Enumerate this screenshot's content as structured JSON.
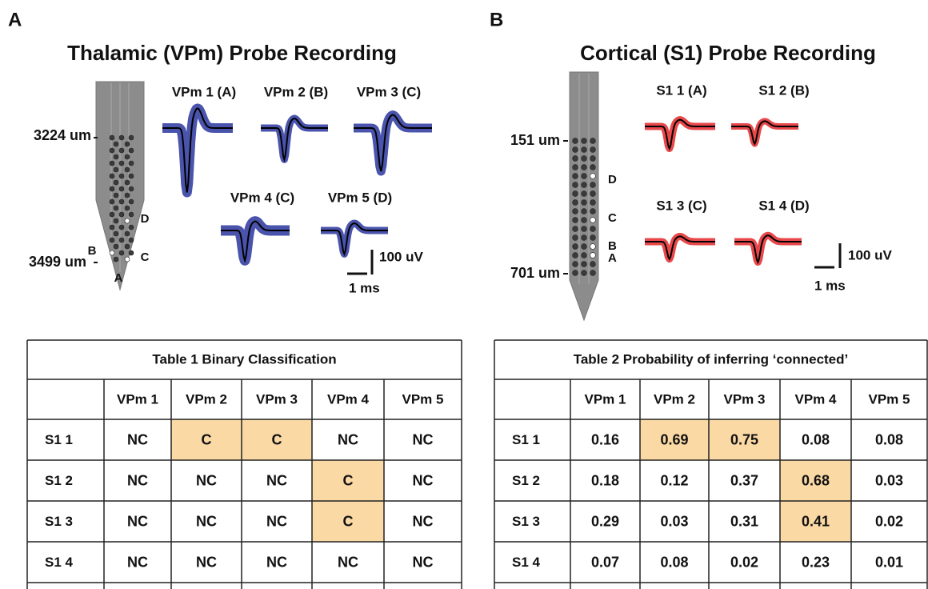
{
  "panels": [
    {
      "letter": "A",
      "title": "Thalamic (VPm) Probe Recording",
      "color": "#2e3192",
      "trace_color": "#4a54ac",
      "depth_top": "3224 um",
      "depth_bottom": "3499 um",
      "sites": [
        "A",
        "B",
        "C",
        "D"
      ],
      "units": [
        "VPm 1 (A)",
        "VPm 2 (B)",
        "VPm 3 (C)",
        "VPm 4 (C)",
        "VPm 5 (D)"
      ],
      "scale_y": "100 uV",
      "scale_x": "1 ms"
    },
    {
      "letter": "B",
      "title": "Cortical (S1) Probe Recording",
      "color": "#e52421",
      "trace_color": "#e8484a",
      "depth_top": "151 um",
      "depth_bottom": "701 um",
      "sites": [
        "A",
        "B",
        "C",
        "D"
      ],
      "units": [
        "S1 1 (A)",
        "S1 2 (B)",
        "S1 3 (C)",
        "S1 4 (D)"
      ],
      "scale_y": "100 uV",
      "scale_x": "1 ms"
    }
  ],
  "tables": [
    {
      "title": "Table 1 Binary Classification",
      "highlight_color": "#fbd9a5",
      "columns": [
        "VPm 1",
        "VPm 2",
        "VPm 3",
        "VPm 4",
        "VPm 5"
      ],
      "rows": [
        {
          "label": "S1 1",
          "cells": [
            "NC",
            "C",
            "C",
            "NC",
            "NC"
          ],
          "highlighted": [
            1,
            2
          ]
        },
        {
          "label": "S1 2",
          "cells": [
            "NC",
            "NC",
            "NC",
            "C",
            "NC"
          ],
          "highlighted": [
            3
          ]
        },
        {
          "label": "S1 3",
          "cells": [
            "NC",
            "NC",
            "NC",
            "C",
            "NC"
          ],
          "highlighted": [
            3
          ]
        },
        {
          "label": "S1 4",
          "cells": [
            "NC",
            "NC",
            "NC",
            "NC",
            "NC"
          ],
          "highlighted": []
        }
      ]
    },
    {
      "title": "Table 2 Probability of inferring ‘connected’",
      "highlight_color": "#fbd9a5",
      "columns": [
        "VPm 1",
        "VPm 2",
        "VPm 3",
        "VPm 4",
        "VPm 5"
      ],
      "rows": [
        {
          "label": "S1 1",
          "cells": [
            "0.16",
            "0.69",
            "0.75",
            "0.08",
            "0.08"
          ],
          "highlighted": [
            1,
            2
          ]
        },
        {
          "label": "S1 2",
          "cells": [
            "0.18",
            "0.12",
            "0.37",
            "0.68",
            "0.03"
          ],
          "highlighted": [
            3
          ]
        },
        {
          "label": "S1 3",
          "cells": [
            "0.29",
            "0.03",
            "0.31",
            "0.41",
            "0.02"
          ],
          "highlighted": [
            3
          ]
        },
        {
          "label": "S1 4",
          "cells": [
            "0.07",
            "0.08",
            "0.02",
            "0.23",
            "0.01"
          ],
          "highlighted": []
        }
      ]
    }
  ]
}
